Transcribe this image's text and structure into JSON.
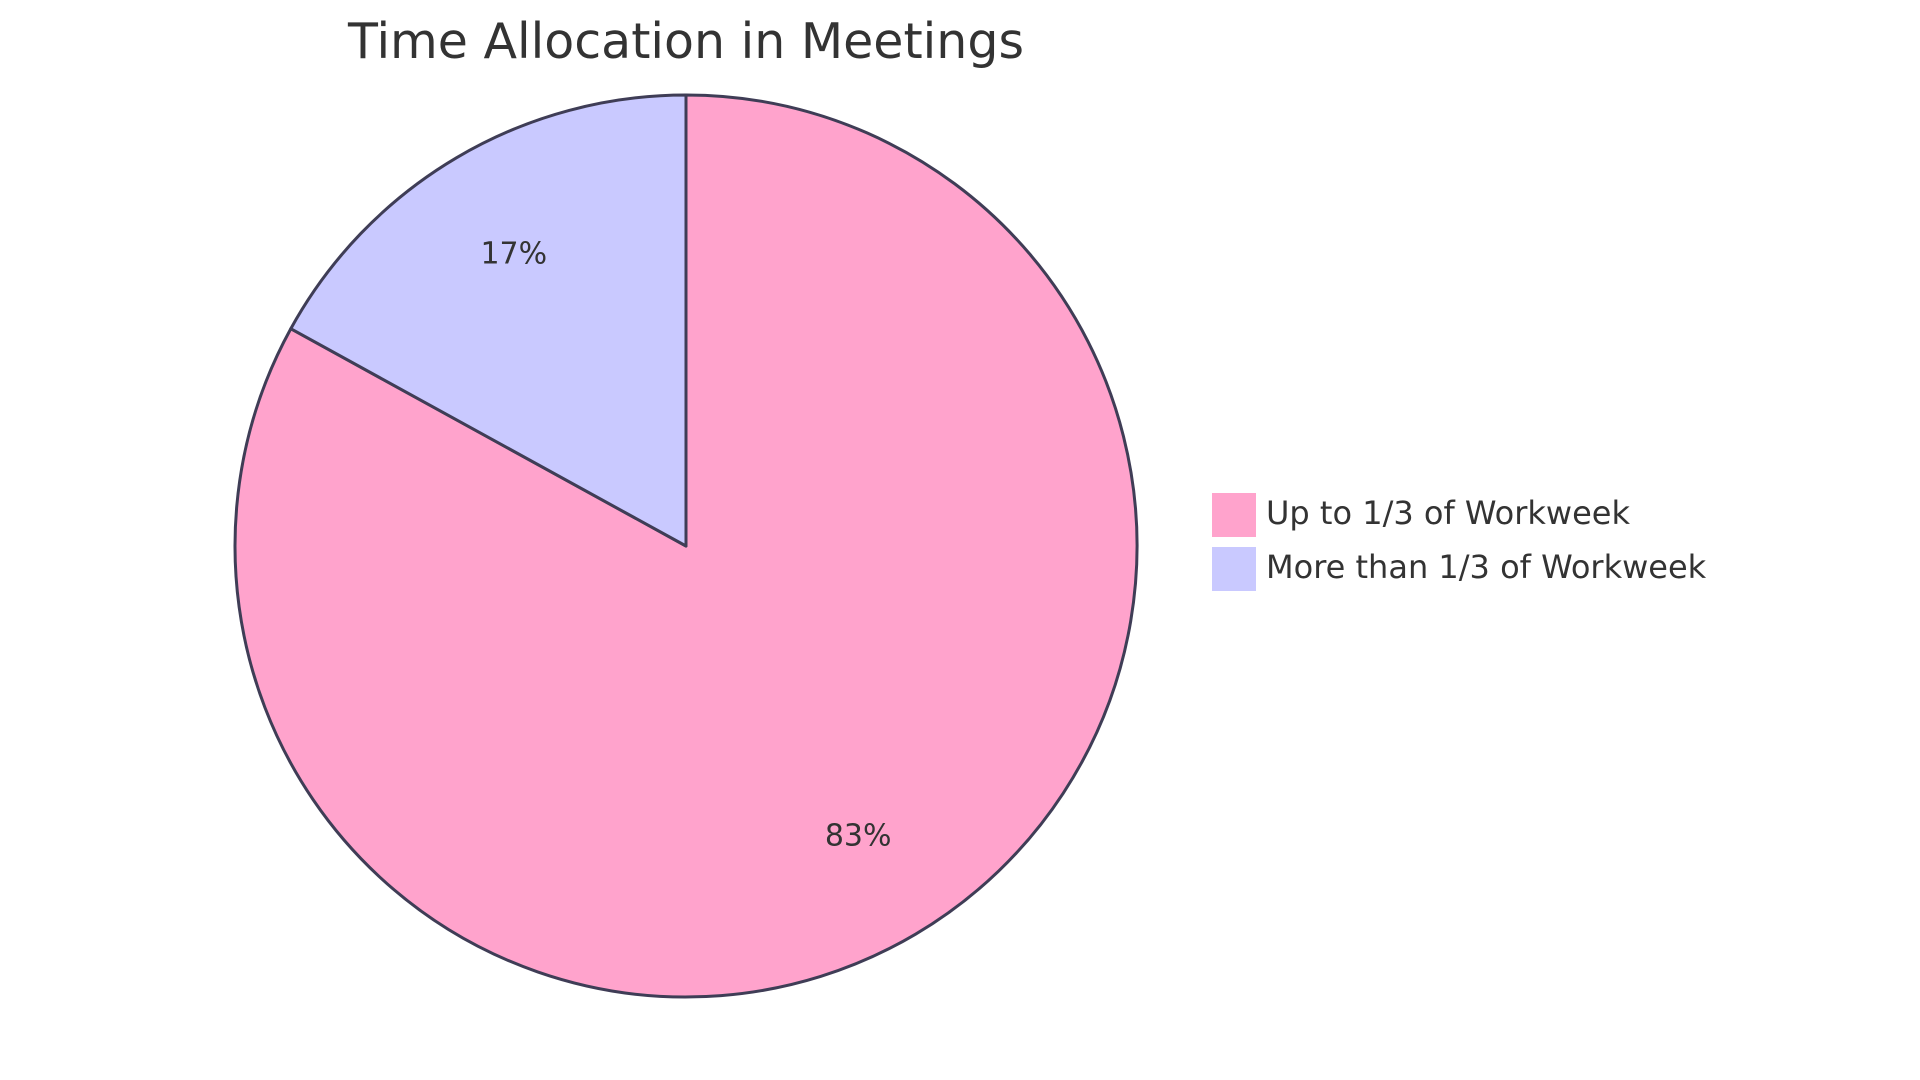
{
  "chart_data": {
    "type": "pie",
    "title": "Time Allocation in Meetings",
    "slices": [
      {
        "label": "Up to 1/3 of Workweek",
        "value": 83,
        "display": "83%",
        "color": "#FFA3CC"
      },
      {
        "label": "More than 1/3 of Workweek",
        "value": 17,
        "display": "17%",
        "color": "#C9C9FF"
      }
    ],
    "start": "12 o'clock",
    "direction": "clockwise",
    "legend_position": "right",
    "stroke_color": "#3F3D56"
  }
}
